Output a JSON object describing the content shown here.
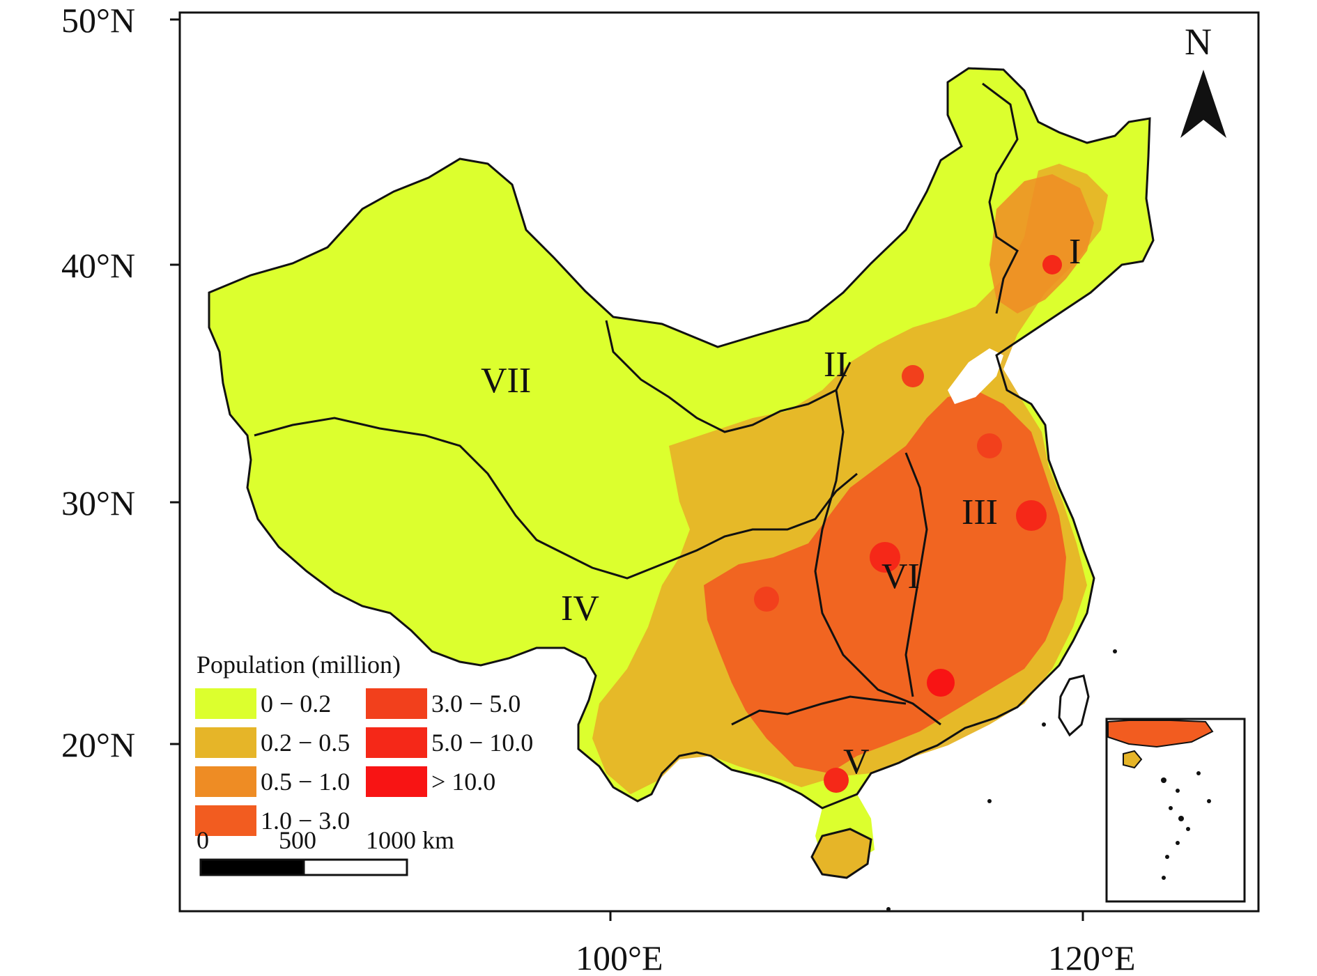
{
  "map": {
    "lat_labels": [
      "50°N",
      "40°N",
      "30°N",
      "20°N"
    ],
    "lon_labels": [
      "100°E",
      "120°E"
    ],
    "north_label": "N",
    "regions": [
      "I",
      "II",
      "III",
      "IV",
      "V",
      "VI",
      "VII"
    ],
    "legend": {
      "title": "Population (million)",
      "items": [
        {
          "label": "0 − 0.2",
          "color": "#dcff2e"
        },
        {
          "label": "0.2 − 0.5",
          "color": "#e6b528"
        },
        {
          "label": "0.5 − 1.0",
          "color": "#ee8c24"
        },
        {
          "label": "1.0 − 3.0",
          "color": "#f25c20"
        },
        {
          "label": "3.0 − 5.0",
          "color": "#f2401c"
        },
        {
          "label": "5.0 − 10.0",
          "color": "#f52818"
        },
        {
          "label": "> 10.0",
          "color": "#f81414"
        }
      ]
    },
    "scale_bar": {
      "labels": [
        "0",
        "500",
        "1000 km"
      ]
    },
    "colors": {
      "low": "#dcff2e",
      "mid": "#e6b528",
      "high": "#f25c20",
      "border": "#111111"
    }
  }
}
